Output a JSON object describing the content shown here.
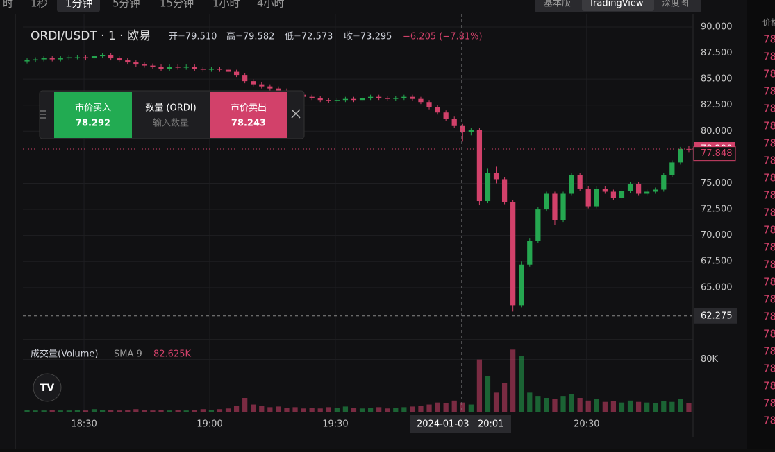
{
  "toolbar": {
    "intervals": [
      "时",
      "1秒",
      "1分钟",
      "5分钟",
      "15分钟",
      "1小时",
      "4小时"
    ],
    "views": [
      "基本版",
      "TradingView",
      "深度图"
    ]
  },
  "header": {
    "symbol": "ORDI/USDT · 1 · 欧易",
    "open": "开=79.510",
    "high": "高=79.582",
    "low": "低=72.573",
    "close": "收=73.295",
    "change": "−6.205 (−7.81%)"
  },
  "trade_panel": {
    "buy_label": "市价买入",
    "buy_price": "78.292",
    "qty_label": "数量 (ORDI)",
    "qty_placeholder": "输入数量",
    "sell_label": "市价卖出",
    "sell_price": "78.243"
  },
  "volume_legend": {
    "name": "成交量(Volume)",
    "sma": "SMA 9",
    "value": "82.625K"
  },
  "crosshair": {
    "date": "2024-01-03",
    "time": "20:01",
    "price": 62.275
  },
  "order_book": {
    "header": "价格",
    "prices": [
      "78",
      "78",
      "78",
      "78",
      "78",
      "78",
      "78",
      "78",
      "78",
      "78",
      "78",
      "78",
      "78",
      "78",
      "78",
      "78",
      "78",
      "78",
      "78",
      "78",
      "78",
      "78",
      "78"
    ]
  },
  "chart_data": {
    "type": "candlestick",
    "up_color": "#25a750",
    "down_color": "#d2416a",
    "open": [
      86.7,
      86.8,
      86.9,
      87.0,
      86.9,
      87.0,
      87.1,
      87.1,
      87.0,
      87.2,
      87.3,
      87.0,
      86.8,
      86.6,
      86.4,
      86.3,
      86.2,
      86.0,
      86.2,
      86.1,
      86.2,
      86.0,
      85.9,
      86.0,
      85.9,
      85.7,
      85.4,
      84.8,
      84.5,
      84.3,
      84.1,
      83.9,
      83.7,
      83.5,
      83.3,
      83.2,
      83.0,
      82.9,
      83.0,
      83.1,
      83.0,
      83.2,
      83.3,
      83.2,
      83.1,
      83.2,
      83.3,
      83.1,
      82.8,
      82.3,
      81.8,
      81.2,
      80.5,
      79.9,
      80.1,
      73.3,
      76.0,
      75.4,
      73.2,
      63.3,
      67.2,
      69.5,
      72.5,
      74.0,
      71.5,
      74.0,
      75.8,
      74.5,
      72.8,
      74.5,
      74.2,
      73.6,
      74.3,
      74.9,
      74.0,
      74.2,
      74.4,
      75.8,
      77.0,
      78.3
    ],
    "high": [
      87.0,
      87.1,
      87.2,
      87.2,
      87.2,
      87.3,
      87.3,
      87.3,
      87.4,
      87.5,
      87.5,
      87.2,
      87.0,
      86.8,
      86.6,
      86.5,
      86.4,
      86.4,
      86.4,
      86.4,
      86.4,
      86.2,
      86.2,
      86.2,
      86.1,
      85.9,
      85.6,
      85.0,
      84.7,
      84.5,
      84.3,
      84.1,
      83.9,
      83.7,
      83.5,
      83.4,
      83.2,
      83.2,
      83.3,
      83.3,
      83.4,
      83.5,
      83.5,
      83.4,
      83.4,
      83.5,
      83.5,
      83.3,
      83.0,
      82.5,
      82.0,
      81.4,
      80.7,
      80.3,
      80.3,
      76.4,
      76.6,
      75.6,
      73.4,
      67.5,
      69.7,
      72.7,
      74.2,
      74.2,
      74.2,
      76.0,
      76.0,
      74.7,
      74.7,
      74.7,
      74.4,
      74.5,
      75.1,
      75.1,
      74.4,
      74.6,
      76.0,
      77.2,
      78.5,
      78.6
    ],
    "low": [
      86.5,
      86.6,
      86.7,
      86.7,
      86.7,
      86.8,
      86.9,
      86.8,
      86.8,
      87.0,
      86.8,
      86.6,
      86.4,
      86.2,
      86.1,
      86.0,
      85.8,
      85.8,
      85.9,
      85.9,
      85.8,
      85.7,
      85.7,
      85.7,
      85.5,
      85.2,
      84.6,
      84.3,
      84.1,
      83.9,
      83.7,
      83.5,
      83.3,
      83.1,
      83.0,
      82.8,
      82.7,
      82.7,
      82.8,
      82.8,
      82.8,
      83.0,
      83.0,
      82.9,
      82.9,
      83.0,
      82.9,
      82.6,
      82.1,
      81.6,
      81.0,
      80.3,
      79.0,
      79.6,
      72.9,
      73.1,
      75.0,
      73.0,
      62.7,
      63.1,
      67.0,
      69.3,
      72.3,
      71.0,
      71.3,
      73.8,
      74.3,
      72.6,
      72.6,
      74.0,
      73.4,
      73.4,
      74.1,
      73.8,
      73.8,
      74.0,
      74.2,
      75.6,
      76.8,
      78.0
    ],
    "close": [
      86.8,
      86.9,
      87.0,
      86.9,
      87.0,
      87.1,
      87.1,
      87.0,
      87.2,
      87.3,
      87.0,
      86.8,
      86.6,
      86.4,
      86.3,
      86.2,
      86.0,
      86.2,
      86.1,
      86.2,
      86.0,
      85.9,
      86.0,
      85.9,
      85.7,
      85.4,
      84.8,
      84.5,
      84.3,
      84.1,
      83.9,
      83.7,
      83.5,
      83.3,
      83.2,
      83.0,
      82.9,
      83.0,
      83.1,
      83.0,
      83.2,
      83.3,
      83.2,
      83.1,
      83.2,
      83.3,
      83.1,
      82.8,
      82.3,
      81.8,
      81.2,
      80.5,
      79.9,
      80.1,
      73.3,
      76.0,
      75.4,
      73.2,
      63.3,
      67.2,
      69.5,
      72.5,
      74.0,
      71.5,
      74.0,
      75.8,
      74.5,
      72.8,
      74.5,
      74.2,
      73.6,
      74.3,
      74.9,
      74.0,
      74.2,
      74.4,
      75.8,
      77.0,
      78.3,
      78.29
    ],
    "volume": [
      4,
      3,
      3,
      4,
      3,
      3,
      4,
      3,
      5,
      4,
      4,
      3,
      4,
      5,
      4,
      3,
      4,
      3,
      4,
      3,
      4,
      5,
      4,
      5,
      6,
      10,
      22,
      12,
      10,
      8,
      9,
      7,
      8,
      6,
      7,
      6,
      8,
      7,
      9,
      7,
      6,
      7,
      8,
      6,
      7,
      8,
      9,
      10,
      12,
      15,
      14,
      18,
      15,
      12,
      80,
      55,
      30,
      45,
      95,
      85,
      30,
      25,
      22,
      20,
      25,
      28,
      22,
      18,
      20,
      16,
      17,
      15,
      18,
      16,
      15,
      14,
      17,
      16,
      20,
      14
    ],
    "ylim": [
      60,
      91.26
    ],
    "yticks": [
      {
        "value": 90,
        "label": "90.000"
      },
      {
        "value": 87.5,
        "label": "87.500"
      },
      {
        "value": 85,
        "label": "85.000"
      },
      {
        "value": 82.5,
        "label": "82.500"
      },
      {
        "value": 80,
        "label": "80.000"
      },
      {
        "value": 75,
        "label": "75.000"
      },
      {
        "value": 72.5,
        "label": "72.500"
      },
      {
        "value": 70,
        "label": "70.000"
      },
      {
        "value": 67.5,
        "label": "67.500"
      },
      {
        "value": 65,
        "label": "65.000"
      }
    ],
    "vol_ylim": [
      0,
      110
    ],
    "vol_yticks": [
      {
        "value": 80,
        "label": "80K"
      }
    ],
    "xlim": [
      0,
      80
    ],
    "xticks": [
      {
        "value": 7.3,
        "label": "18:30"
      },
      {
        "value": 22.3,
        "label": "19:00"
      },
      {
        "value": 37.3,
        "label": "19:30"
      },
      {
        "value": 67.3,
        "label": "20:30"
      }
    ],
    "last_price": {
      "value": 78.29,
      "label": "78.290"
    },
    "mark_price": 77.848
  }
}
